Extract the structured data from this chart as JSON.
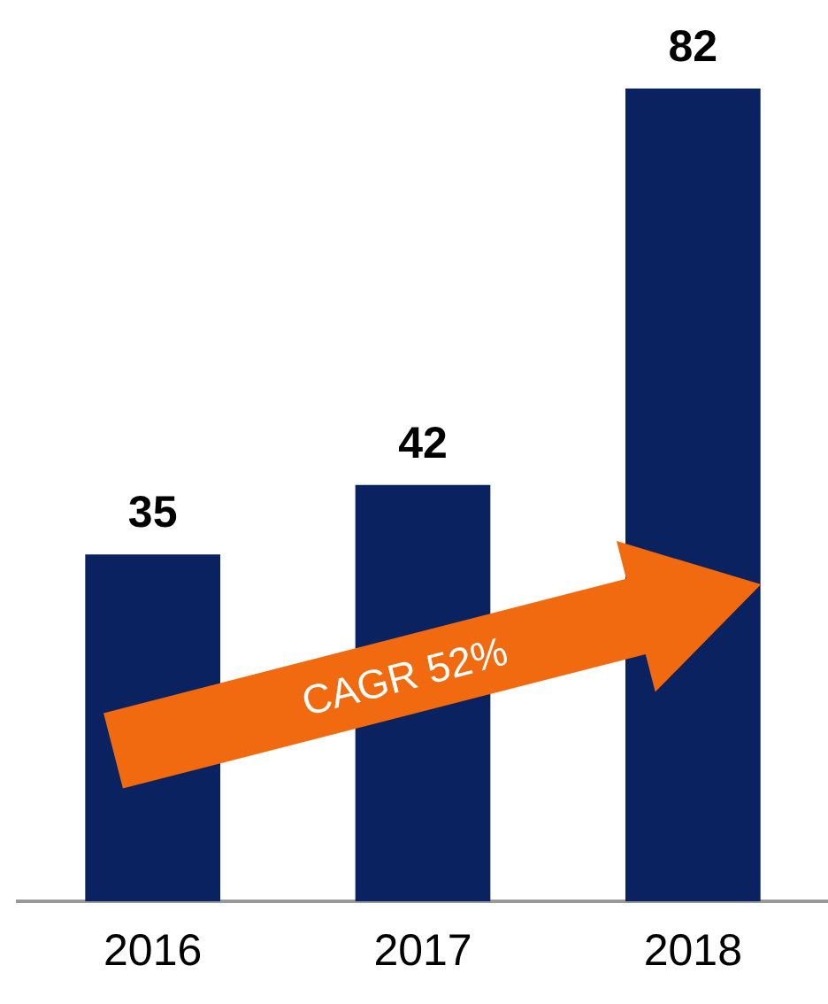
{
  "chart_data": {
    "type": "bar",
    "categories": [
      "2016",
      "2017",
      "2018"
    ],
    "values": [
      35,
      42,
      82
    ],
    "color": "#0b2260",
    "data_labels": true,
    "grid": false,
    "legend": false,
    "annotations": [
      "CAGR 52%"
    ]
  }
}
